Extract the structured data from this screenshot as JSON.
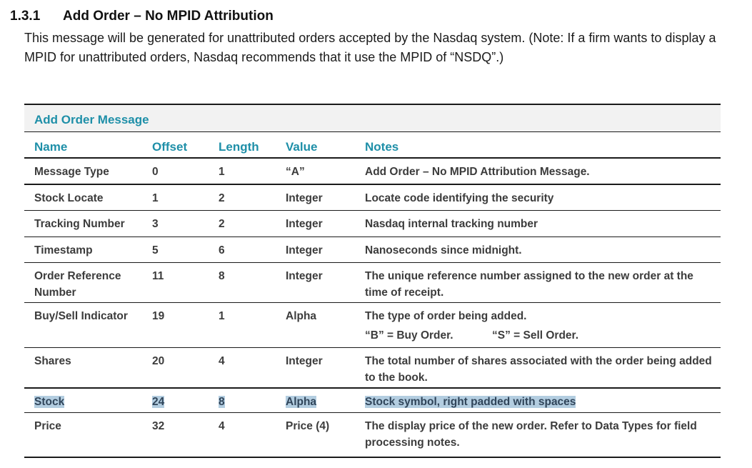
{
  "heading": {
    "number": "1.3.1",
    "title": "Add Order – No MPID Attribution"
  },
  "intro": "This message will be generated for unattributed orders accepted by the Nasdaq system. (Note: If a firm wants to display a MPID for unattributed orders, Nasdaq recommends that it use the MPID of “NSDQ”.)",
  "table": {
    "caption": "Add Order Message",
    "columns": [
      "Name",
      "Offset",
      "Length",
      "Value",
      "Notes"
    ],
    "rows": [
      {
        "name": "Message Type",
        "offset": "0",
        "length": "1",
        "value": "“A”",
        "notes": "Add Order – No MPID Attribution Message."
      },
      {
        "name": "Stock Locate",
        "offset": "1",
        "length": "2",
        "value": "Integer",
        "notes": "Locate code identifying the security"
      },
      {
        "name": "Tracking Number",
        "offset": "3",
        "length": "2",
        "value": "Integer",
        "notes": "Nasdaq internal tracking number"
      },
      {
        "name": "Timestamp",
        "offset": "5",
        "length": "6",
        "value": "Integer",
        "notes": "Nanoseconds since midnight."
      },
      {
        "name": "Order Reference Number",
        "offset": "11",
        "length": "8",
        "value": "Integer",
        "notes": "The unique reference number assigned to the new order at the time of receipt."
      },
      {
        "name": "Buy/Sell Indicator",
        "offset": "19",
        "length": "1",
        "value": "Alpha",
        "notes": "The type of order being added.",
        "notes_sub": [
          "“B” = Buy Order.",
          "“S” = Sell Order."
        ]
      },
      {
        "name": "Shares",
        "offset": "20",
        "length": "4",
        "value": "Integer",
        "notes": "The total number of shares associated with the order being added to the book."
      },
      {
        "name": "Stock",
        "offset": "24",
        "length": "8",
        "value": "Alpha",
        "notes": "Stock symbol, right padded with spaces"
      },
      {
        "name": "Price",
        "offset": "32",
        "length": "4",
        "value": "Price (4)",
        "notes": "The display price of the new order. Refer to Data Types for field processing notes."
      }
    ]
  },
  "colors": {
    "accent": "#1e8fa8",
    "caption_bg": "#f2f2f2",
    "highlight": "#b3cde0"
  }
}
